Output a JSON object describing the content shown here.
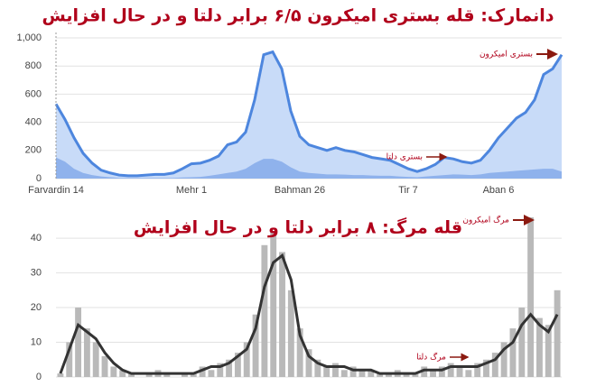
{
  "chart_data": [
    {
      "type": "area",
      "title": "دانمارک: قله بستری امیکرون ۶/۵ برابر دلتا و در حال افزایش",
      "categories": [
        "Farvardin 14",
        null,
        null,
        null,
        null,
        null,
        null,
        null,
        null,
        null,
        null,
        null,
        null,
        null,
        null,
        "Mehr 1",
        null,
        null,
        null,
        null,
        null,
        null,
        null,
        null,
        null,
        null,
        null,
        "Bahman 26",
        null,
        null,
        null,
        null,
        null,
        null,
        null,
        null,
        null,
        null,
        null,
        "Tir 7",
        null,
        null,
        null,
        null,
        null,
        null,
        null,
        null,
        null,
        "Aban 6",
        null,
        null,
        null,
        null,
        null,
        null,
        null
      ],
      "series": [
        {
          "color": "#c8dbf8",
          "line_color": "#4d86de",
          "values": [
            530,
            420,
            290,
            180,
            110,
            60,
            40,
            25,
            20,
            20,
            25,
            30,
            30,
            40,
            70,
            105,
            110,
            130,
            160,
            240,
            260,
            330,
            560,
            880,
            900,
            780,
            480,
            300,
            240,
            220,
            200,
            220,
            200,
            190,
            170,
            150,
            140,
            130,
            100,
            70,
            50,
            70,
            100,
            150,
            140,
            120,
            110,
            130,
            200,
            290,
            360,
            430,
            470,
            560,
            740,
            780,
            880
          ]
        },
        {
          "color": "#8fb2ec",
          "values": [
            150,
            120,
            70,
            40,
            25,
            15,
            10,
            5,
            5,
            5,
            5,
            5,
            5,
            5,
            8,
            10,
            12,
            20,
            30,
            40,
            50,
            70,
            110,
            140,
            140,
            120,
            80,
            50,
            40,
            35,
            30,
            30,
            28,
            25,
            25,
            22,
            20,
            20,
            15,
            12,
            10,
            15,
            20,
            25,
            30,
            28,
            25,
            30,
            40,
            45,
            50,
            55,
            60,
            65,
            70,
            70,
            50
          ]
        }
      ],
      "ylim": [
        0,
        1000
      ],
      "yticks": [
        0,
        200,
        400,
        600,
        800,
        {
          "value": 1000,
          "label": "1,000"
        }
      ],
      "grid": true,
      "annotations": [
        {
          "text": "بستری امیکرون"
        },
        {
          "text": "بستری دلتا"
        }
      ]
    },
    {
      "type": "bar",
      "title": "قله مرگ: ۸ برابر دلتا و در حال افزایش",
      "series": [
        {
          "type": "bar",
          "color": "#b9b9b9",
          "values": [
            1,
            10,
            20,
            14,
            10,
            6,
            3,
            2,
            1,
            0,
            1,
            2,
            1,
            0,
            1,
            1,
            3,
            2,
            4,
            5,
            7,
            10,
            18,
            38,
            42,
            36,
            25,
            14,
            8,
            5,
            3,
            4,
            2,
            3,
            2,
            2,
            1,
            1,
            2,
            1,
            1,
            3,
            2,
            3,
            4,
            3,
            2,
            4,
            5,
            7,
            10,
            14,
            20,
            46,
            17,
            15,
            25
          ]
        },
        {
          "type": "line",
          "color": "#333333",
          "values": [
            1,
            8,
            15,
            13,
            11,
            7,
            4,
            2,
            1,
            1,
            1,
            1,
            1,
            1,
            1,
            1,
            2,
            3,
            3,
            4,
            6,
            8,
            14,
            26,
            33,
            35,
            28,
            12,
            6,
            4,
            3,
            3,
            3,
            2,
            2,
            2,
            1,
            1,
            1,
            1,
            1,
            2,
            2,
            2,
            3,
            3,
            3,
            3,
            4,
            5,
            8,
            10,
            15,
            18,
            15,
            13,
            18
          ]
        }
      ],
      "ylim": [
        0,
        46
      ],
      "yticks": [
        0,
        10,
        20,
        30,
        40
      ],
      "grid": true,
      "annotations": [
        {
          "text": "مرگ امیکرون"
        },
        {
          "text": "مرگ دلتا"
        }
      ]
    }
  ]
}
